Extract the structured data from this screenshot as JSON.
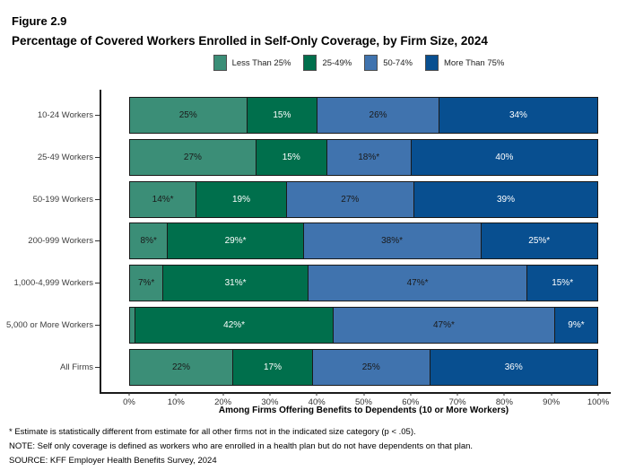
{
  "figure": {
    "label": "Figure 2.9",
    "title": "Percentage of Covered Workers Enrolled in Self-Only Coverage, by Firm Size, 2024"
  },
  "chart_data": {
    "type": "bar",
    "stacked": true,
    "orientation": "horizontal",
    "title": "Percentage of Covered Workers Enrolled in Self-Only Coverage, by Firm Size, 2024",
    "categories": [
      "10-24 Workers",
      "25-49 Workers",
      "50-199 Workers",
      "200-999 Workers",
      "1,000-4,999 Workers",
      "5,000 or More Workers",
      "All Firms"
    ],
    "series": [
      {
        "name": "Less Than 25%",
        "color": "#3B8E77",
        "label_color": "#1a1a1a",
        "values": [
          25,
          27,
          14,
          8,
          7,
          1,
          22
        ],
        "labels": [
          "25%",
          "27%",
          "14%*",
          "8%*",
          "7%*",
          "",
          "22%"
        ]
      },
      {
        "name": "25-49%",
        "color": "#006F4C",
        "label_color": "#ffffff",
        "values": [
          15,
          15,
          19,
          29,
          31,
          42,
          17
        ],
        "labels": [
          "15%",
          "15%",
          "19%",
          "29%*",
          "31%*",
          "42%*",
          "17%"
        ]
      },
      {
        "name": "50-74%",
        "color": "#4073AE",
        "label_color": "#1a1a1a",
        "values": [
          26,
          18,
          27,
          38,
          47,
          47,
          25
        ],
        "labels": [
          "26%",
          "18%*",
          "27%",
          "38%*",
          "47%*",
          "47%*",
          "25%"
        ]
      },
      {
        "name": "More Than 75%",
        "color": "#084F90",
        "label_color": "#ffffff",
        "values": [
          34,
          40,
          39,
          25,
          15,
          9,
          36
        ],
        "labels": [
          "34%",
          "40%",
          "39%",
          "25%*",
          "15%*",
          "9%*",
          "36%"
        ]
      }
    ],
    "xlabel": "Among Firms Offering Benefits to Dependents (10 or More Workers)",
    "x_ticks": [
      "0%",
      "10%",
      "20%",
      "30%",
      "40%",
      "50%",
      "60%",
      "70%",
      "80%",
      "90%",
      "100%"
    ],
    "xlim": [
      0,
      100
    ],
    "grid": false,
    "legend_position": "top"
  },
  "notes": {
    "footnote": "* Estimate is statistically different from estimate for all other firms not in the indicated size category (p < .05).",
    "note": "NOTE: Self only coverage is defined as workers who are enrolled in a health plan but do not have dependents on that plan.",
    "source": "SOURCE: KFF Employer Health Benefits Survey, 2024"
  }
}
